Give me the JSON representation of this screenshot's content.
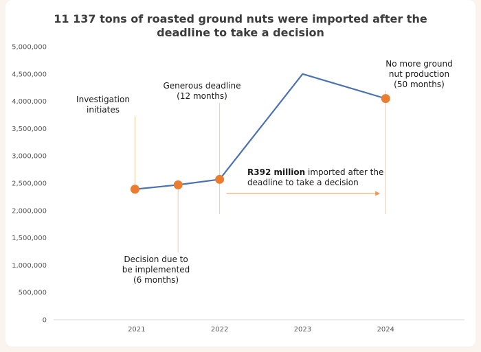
{
  "chart_data": {
    "type": "line",
    "title": "11 137 tons of roasted ground nuts were imported after the deadline to take a decision",
    "xlabel": "",
    "ylabel": "",
    "ylim": [
      0,
      5000000
    ],
    "yticks": [
      0,
      500000,
      1000000,
      1500000,
      2000000,
      2500000,
      3000000,
      3500000,
      4000000,
      4500000,
      5000000
    ],
    "ytick_labels": [
      "0",
      "500,000",
      "1,000,000",
      "1,500,000",
      "2,000,000",
      "2,500,000",
      "3,000,000",
      "3,500,000",
      "4,000,000",
      "4,500,000",
      "5,000,000"
    ],
    "xticks": [
      2021,
      2022,
      2023,
      2024
    ],
    "xtick_labels": [
      "2021",
      "2022",
      "2023",
      "2024"
    ],
    "series": [
      {
        "values": [
          {
            "x": 2020.98,
            "y": 2390000
          },
          {
            "x": 2021.5,
            "y": 2470000
          },
          {
            "x": 2022.0,
            "y": 2570000
          },
          {
            "x": 2023.0,
            "y": 4500000
          },
          {
            "x": 2024.0,
            "y": 4050000
          }
        ],
        "markers": [
          0,
          1,
          2,
          4
        ]
      }
    ],
    "colors": {
      "line": "#4a72b0",
      "marker": "#ec7c30",
      "guide": "#f5c89f",
      "arrow": "#ec9b57"
    },
    "grid": false,
    "legend": "none",
    "annotations": [
      {
        "id": "investigation",
        "lines": [
          "Investigation",
          "initiates"
        ]
      },
      {
        "id": "decision",
        "lines": [
          "Decision due to",
          "be implemented",
          "(6 months)"
        ]
      },
      {
        "id": "deadline",
        "lines": [
          "Generous deadline",
          "(12 months)"
        ]
      },
      {
        "id": "no-production",
        "lines": [
          "No more ground",
          "nut production",
          "(50 months)"
        ]
      },
      {
        "id": "imported",
        "bold": "R392 million",
        "rest": " imported after the",
        "line2": "deadline to take a decision"
      }
    ]
  }
}
